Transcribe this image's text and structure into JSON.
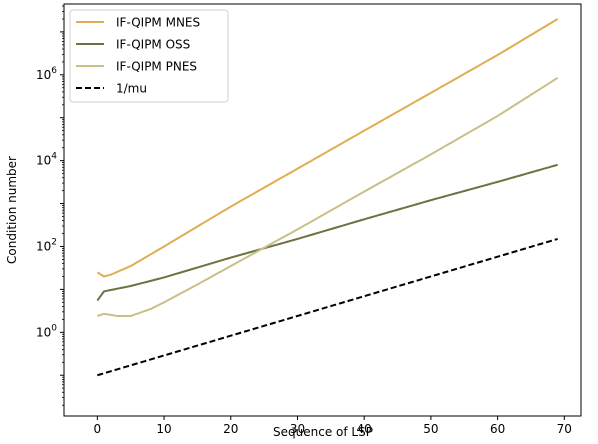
{
  "chart_data": {
    "type": "line",
    "title": "",
    "xlabel": "Sequence of LSP",
    "ylabel": "Condition number",
    "xlim": [
      -5,
      72.5
    ],
    "ylim_log10": [
      -1.95,
      7.65
    ],
    "yscale": "log",
    "x_ticks": [
      0,
      10,
      20,
      30,
      40,
      50,
      60,
      70
    ],
    "y_ticks": [
      {
        "base": "10",
        "exp": "0",
        "value": 1
      },
      {
        "base": "10",
        "exp": "2",
        "value": 100
      },
      {
        "base": "10",
        "exp": "4",
        "value": 10000
      },
      {
        "base": "10",
        "exp": "6",
        "value": 1000000
      }
    ],
    "grid": false,
    "legend_position": "upper-left",
    "series": [
      {
        "name": "IF-QIPM MNES",
        "color": "#e0ae50",
        "dash": "solid",
        "points": [
          [
            0,
            25
          ],
          [
            1,
            20
          ],
          [
            2,
            22
          ],
          [
            5,
            35
          ],
          [
            10,
            100
          ],
          [
            20,
            850
          ],
          [
            30,
            6500
          ],
          [
            40,
            50000
          ],
          [
            50,
            380000
          ],
          [
            60,
            2900000
          ],
          [
            69,
            20000000
          ]
        ]
      },
      {
        "name": "IF-QIPM OSS",
        "color": "#6b7340",
        "dash": "solid",
        "points": [
          [
            0,
            5.5
          ],
          [
            1,
            9
          ],
          [
            5,
            12
          ],
          [
            10,
            19
          ],
          [
            20,
            55
          ],
          [
            30,
            150
          ],
          [
            40,
            430
          ],
          [
            50,
            1200
          ],
          [
            60,
            3200
          ],
          [
            69,
            8000
          ]
        ]
      },
      {
        "name": "IF-QIPM PNES",
        "color": "#c8c087",
        "dash": "solid",
        "points": [
          [
            0,
            2.4
          ],
          [
            1,
            2.7
          ],
          [
            3,
            2.4
          ],
          [
            5,
            2.4
          ],
          [
            8,
            3.5
          ],
          [
            10,
            5
          ],
          [
            15,
            13
          ],
          [
            20,
            35
          ],
          [
            30,
            250
          ],
          [
            40,
            1900
          ],
          [
            50,
            14000
          ],
          [
            60,
            110000
          ],
          [
            69,
            850000
          ]
        ]
      },
      {
        "name": "1/mu",
        "color": "#000000",
        "dash": "dashed",
        "points": [
          [
            0,
            0.1
          ],
          [
            69,
            150
          ]
        ]
      }
    ]
  }
}
